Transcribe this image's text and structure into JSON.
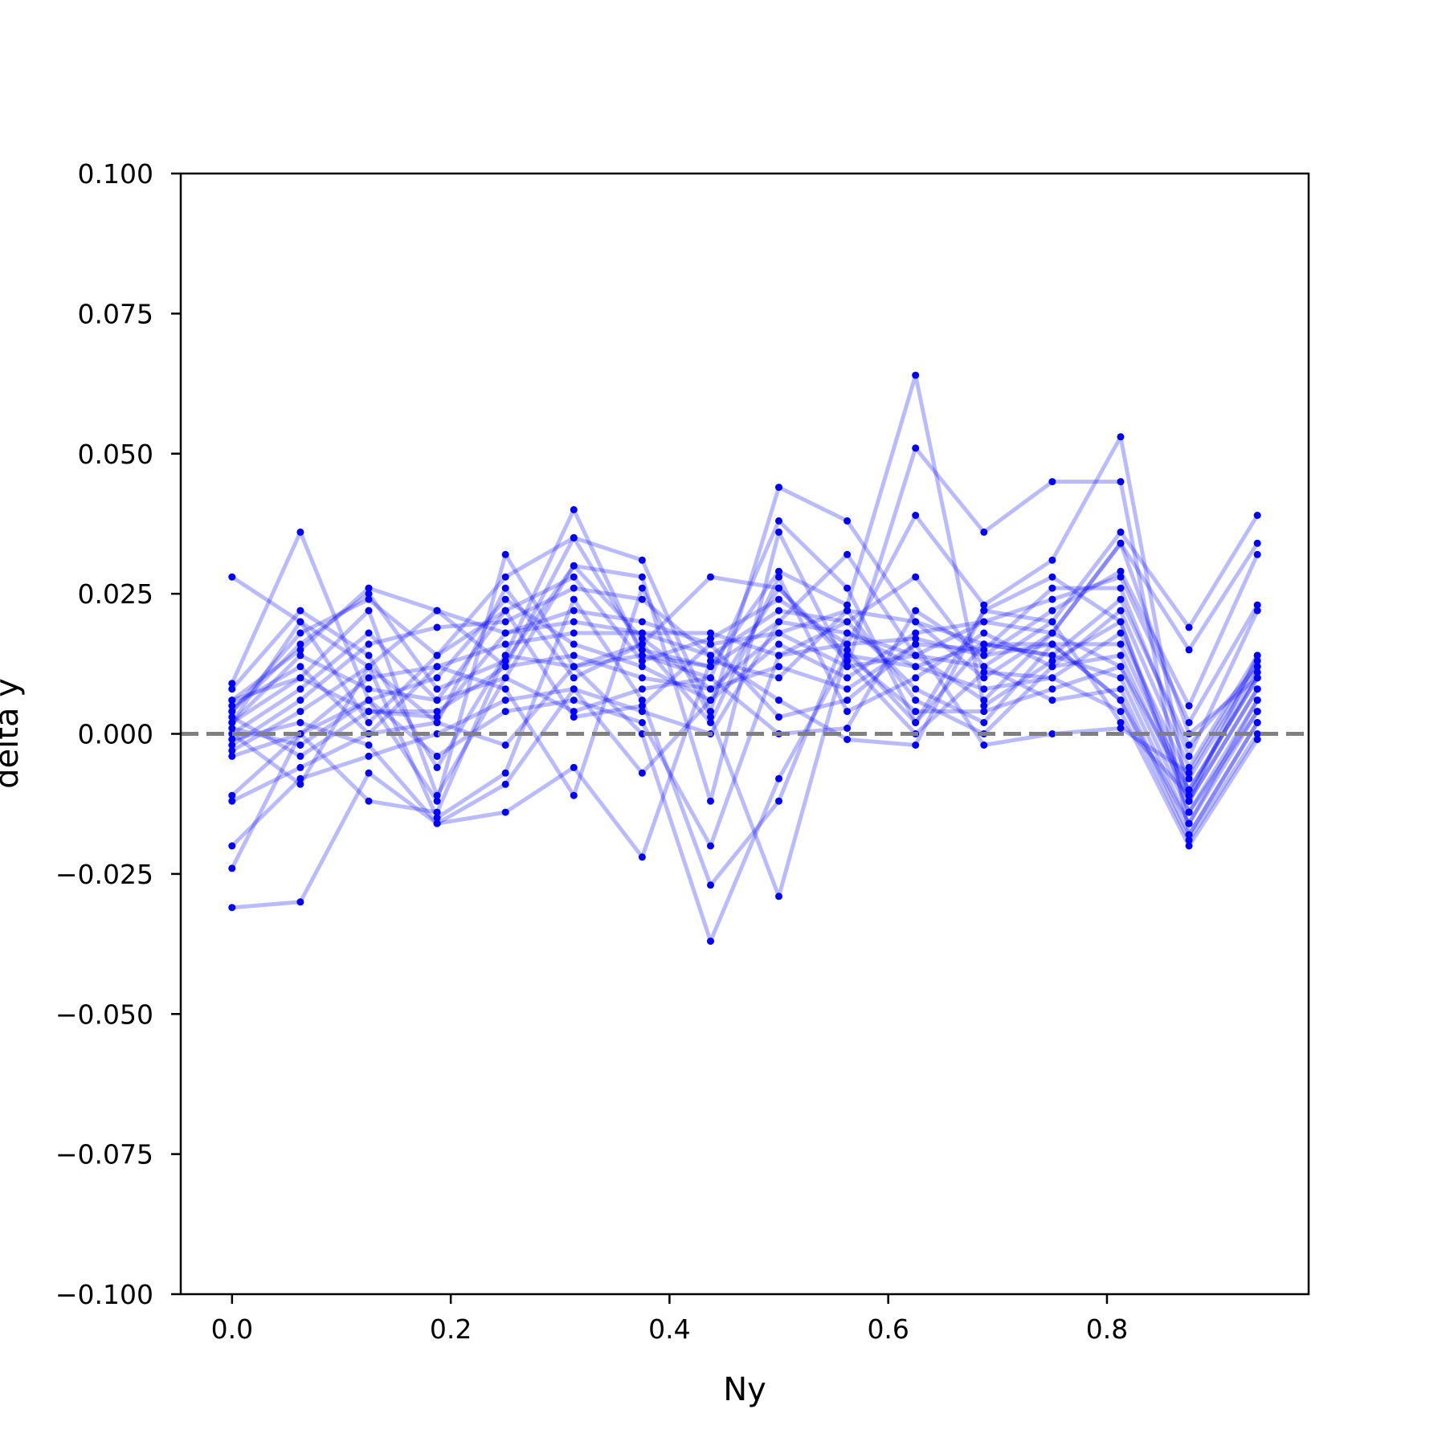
{
  "chart_data": {
    "type": "line",
    "xlabel": "Ny",
    "ylabel": "delta y",
    "xlim": [
      -0.0469,
      0.9844
    ],
    "ylim": [
      -0.1,
      0.1
    ],
    "grid": false,
    "x": [
      0.0,
      0.0625,
      0.125,
      0.1875,
      0.25,
      0.3125,
      0.375,
      0.4375,
      0.5,
      0.5625,
      0.625,
      0.6875,
      0.75,
      0.8125,
      0.875,
      0.9375
    ],
    "xticks": [
      0.0,
      0.2,
      0.4,
      0.6,
      0.8
    ],
    "xtick_labels": [
      "0.0",
      "0.2",
      "0.4",
      "0.6",
      "0.8"
    ],
    "yticks": [
      0.1,
      0.075,
      0.05,
      0.025,
      0.0,
      -0.025,
      -0.05,
      -0.075,
      -0.1
    ],
    "ytick_labels": [
      "0.100",
      "0.075",
      "0.050",
      "0.025",
      "0.000",
      "−0.025",
      "−0.050",
      "−0.075",
      "−0.100"
    ],
    "reference_line": {
      "y": 0.0,
      "style": "dashed",
      "color": "#808080"
    },
    "series_color": "#0000ff",
    "series": [
      {
        "values": [
          0.028,
          0.02,
          0.012,
          0.002,
          -0.002,
          0.012,
          0.016,
          0.028,
          0.026,
          0.014,
          0.012,
          0.016,
          0.014,
          0.024,
          -0.002,
          0.012
        ]
      },
      {
        "values": [
          0.009,
          0.036,
          0.006,
          -0.012,
          0.032,
          0.012,
          0.014,
          0.012,
          0.02,
          0.032,
          0.014,
          0.006,
          0.018,
          0.012,
          -0.01,
          0.01
        ]
      },
      {
        "values": [
          0.008,
          0.022,
          0.014,
          -0.006,
          0.014,
          0.04,
          0.014,
          0.01,
          0.038,
          0.026,
          0.002,
          0.022,
          0.028,
          0.02,
          -0.012,
          0.008
        ]
      },
      {
        "values": [
          0.006,
          0.015,
          0.026,
          0.022,
          0.012,
          0.035,
          0.031,
          0.004,
          0.044,
          0.038,
          0.02,
          0.016,
          0.016,
          0.006,
          -0.016,
          0.006
        ]
      },
      {
        "values": [
          0.004,
          0.018,
          0.024,
          0.014,
          0.028,
          0.035,
          0.015,
          0.012,
          0.029,
          0.023,
          0.064,
          0.005,
          0.013,
          0.02,
          -0.014,
          0.004
        ]
      },
      {
        "values": [
          0.002,
          0.01,
          0.022,
          -0.011,
          0.01,
          0.03,
          0.028,
          -0.012,
          0.036,
          0.012,
          0.051,
          0.036,
          0.045,
          0.045,
          -0.018,
          0.002
        ]
      },
      {
        "values": [
          0.0,
          0.008,
          0.018,
          0.006,
          0.022,
          0.028,
          0.013,
          0.017,
          0.024,
          0.016,
          0.039,
          0.023,
          0.031,
          0.053,
          -0.012,
          0.014
        ]
      },
      {
        "values": [
          -0.002,
          0.006,
          0.016,
          0.019,
          0.02,
          0.026,
          0.024,
          0.014,
          0.022,
          0.02,
          0.028,
          0.012,
          0.02,
          0.036,
          0.019,
          0.039
        ]
      },
      {
        "values": [
          -0.003,
          0.004,
          0.012,
          0.022,
          0.018,
          0.022,
          0.02,
          0.016,
          0.018,
          0.022,
          0.02,
          0.01,
          0.018,
          0.034,
          0.015,
          0.034
        ]
      },
      {
        "values": [
          -0.004,
          0.0,
          0.01,
          0.012,
          0.016,
          0.018,
          0.018,
          0.018,
          0.014,
          0.016,
          0.017,
          0.014,
          0.022,
          0.029,
          0.005,
          0.032
        ]
      },
      {
        "values": [
          0.001,
          -0.002,
          0.006,
          0.01,
          0.024,
          0.016,
          0.012,
          0.006,
          0.016,
          0.01,
          0.018,
          0.02,
          0.024,
          0.028,
          0.002,
          0.023
        ]
      },
      {
        "values": [
          0.003,
          -0.004,
          0.004,
          0.004,
          0.012,
          0.014,
          0.01,
          0.008,
          0.012,
          0.008,
          0.016,
          0.015,
          0.026,
          0.026,
          -0.004,
          0.022
        ]
      },
      {
        "values": [
          -0.012,
          -0.006,
          0.0,
          0.002,
          0.026,
          0.01,
          0.016,
          0.002,
          0.028,
          0.004,
          0.01,
          0.018,
          0.012,
          0.022,
          -0.006,
          0.014
        ]
      },
      {
        "values": [
          -0.02,
          -0.008,
          -0.004,
          0.0,
          0.006,
          0.008,
          0.004,
          0.0,
          0.02,
          0.018,
          0.012,
          0.008,
          0.01,
          0.018,
          -0.008,
          0.012
        ]
      },
      {
        "values": [
          -0.024,
          0.0,
          0.006,
          -0.004,
          0.004,
          0.006,
          0.002,
          -0.02,
          0.014,
          0.02,
          0.008,
          0.002,
          0.016,
          0.016,
          -0.01,
          0.01
        ]
      },
      {
        "values": [
          -0.031,
          -0.03,
          -0.007,
          -0.016,
          -0.014,
          -0.006,
          -0.022,
          0.013,
          0.01,
          0.022,
          0.006,
          0.0,
          0.012,
          0.014,
          -0.012,
          0.008
        ]
      },
      {
        "values": [
          -0.011,
          0.0,
          -0.012,
          -0.014,
          0.014,
          0.012,
          0.0,
          -0.037,
          -0.008,
          0.014,
          0.004,
          0.004,
          0.008,
          0.012,
          -0.014,
          0.006
        ]
      },
      {
        "values": [
          0.005,
          0.012,
          0.0,
          0.012,
          0.008,
          -0.011,
          0.026,
          0.003,
          -0.029,
          0.015,
          0.002,
          0.016,
          0.014,
          0.01,
          -0.016,
          0.004
        ]
      },
      {
        "values": [
          0.0,
          -0.009,
          0.012,
          -0.015,
          -0.007,
          0.024,
          0.006,
          -0.027,
          -0.012,
          0.018,
          0.014,
          0.012,
          0.006,
          0.008,
          -0.018,
          0.002
        ]
      },
      {
        "values": [
          0.002,
          0.014,
          0.008,
          0.006,
          0.01,
          0.004,
          0.008,
          0.01,
          0.0,
          0.001,
          0.022,
          0.014,
          0.016,
          0.006,
          -0.019,
          0.0
        ]
      },
      {
        "values": [
          -0.001,
          0.002,
          -0.002,
          -0.016,
          -0.009,
          0.008,
          -0.007,
          0.006,
          0.026,
          0.013,
          0.0,
          0.011,
          0.01,
          0.004,
          -0.02,
          -0.001
        ]
      },
      {
        "values": [
          0.006,
          0.01,
          0.004,
          0.003,
          0.018,
          0.02,
          0.018,
          0.014,
          0.006,
          -0.001,
          -0.002,
          0.022,
          0.02,
          0.002,
          -0.011,
          0.011
        ]
      },
      {
        "values": [
          0.002,
          0.02,
          0.002,
          0.014,
          0.022,
          0.003,
          0.005,
          0.016,
          0.003,
          0.006,
          0.016,
          -0.002,
          0.0,
          0.001,
          -0.007,
          0.013
        ]
      },
      {
        "values": [
          0.004,
          0.016,
          0.025,
          0.008,
          0.013,
          0.03,
          0.017,
          0.008,
          0.018,
          0.012,
          0.014,
          0.02,
          0.018,
          0.034,
          0.0,
          0.01
        ]
      }
    ]
  }
}
